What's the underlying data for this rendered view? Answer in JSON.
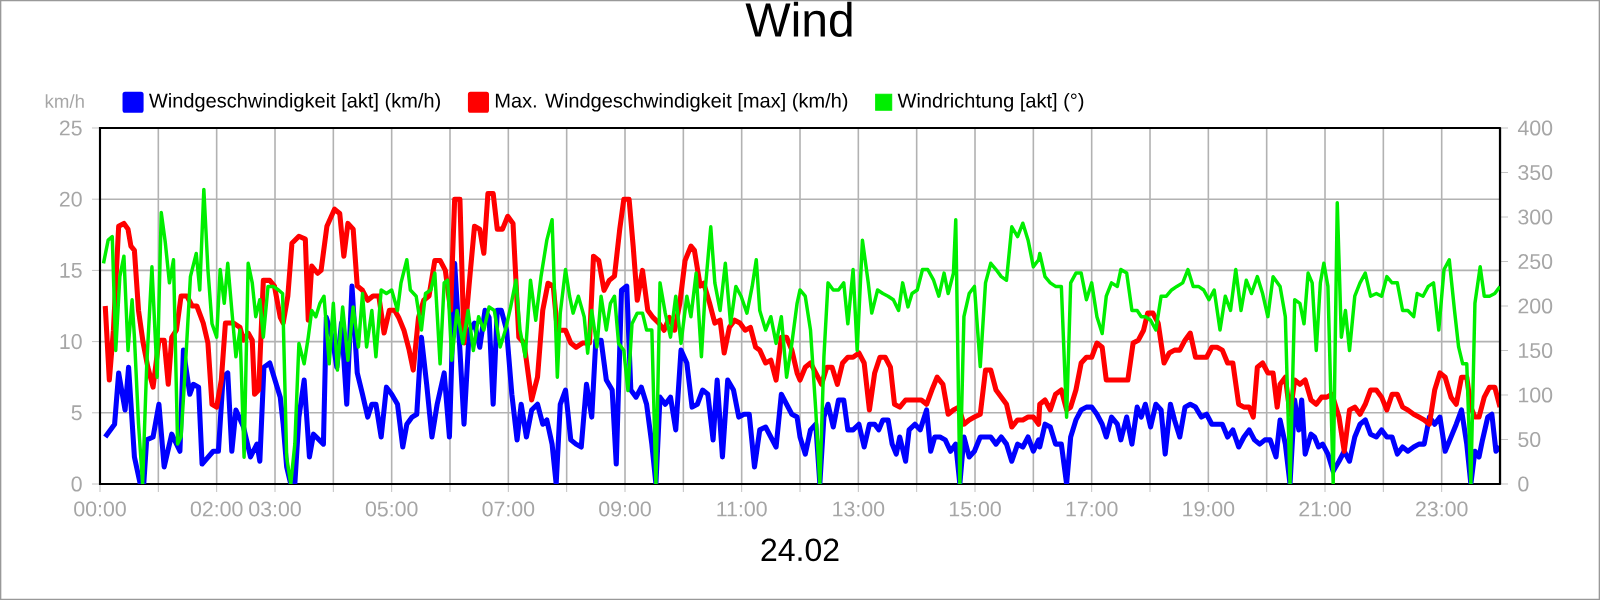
{
  "chart_data": {
    "type": "line",
    "title": "Wind",
    "xlabel": "24.02",
    "ylabel": "km/h",
    "xlim": [
      0,
      24
    ],
    "xticks": [
      {
        "value": 0,
        "label": "00:00"
      },
      {
        "value": 1,
        "label": null
      },
      {
        "value": 2,
        "label": "02:00"
      },
      {
        "value": 3,
        "label": "03:00"
      },
      {
        "value": 4,
        "label": null
      },
      {
        "value": 5,
        "label": "05:00"
      },
      {
        "value": 6,
        "label": null
      },
      {
        "value": 7,
        "label": "07:00"
      },
      {
        "value": 8,
        "label": null
      },
      {
        "value": 9,
        "label": "09:00"
      },
      {
        "value": 10,
        "label": null
      },
      {
        "value": 11,
        "label": "11:00"
      },
      {
        "value": 12,
        "label": null
      },
      {
        "value": 13,
        "label": "13:00"
      },
      {
        "value": 14,
        "label": null
      },
      {
        "value": 15,
        "label": "15:00"
      },
      {
        "value": 16,
        "label": null
      },
      {
        "value": 17,
        "label": "17:00"
      },
      {
        "value": 18,
        "label": null
      },
      {
        "value": 19,
        "label": "19:00"
      },
      {
        "value": 20,
        "label": null
      },
      {
        "value": 21,
        "label": "21:00"
      },
      {
        "value": 22,
        "label": null
      },
      {
        "value": 23,
        "label": "23:00"
      }
    ],
    "ylim": [
      0,
      25
    ],
    "yticks": [
      0,
      5,
      10,
      15,
      20,
      25
    ],
    "y2lim": [
      0,
      400
    ],
    "y2ticks": [
      0,
      50,
      100,
      150,
      200,
      250,
      300,
      350,
      400
    ],
    "grid": true,
    "legend": "top",
    "series": [
      {
        "name": "Windgeschwindigkeit [akt] (km/h)",
        "color": "#0000ff",
        "x": [
          0.09,
          0.25,
          0.32,
          0.43,
          0.49,
          0.59,
          0.69,
          0.75,
          0.8,
          0.91,
          1.01,
          1.1,
          1.23,
          1.37,
          1.43,
          1.54,
          1.6,
          1.69,
          1.75,
          1.94,
          2.03,
          2.11,
          2.19,
          2.26,
          2.33,
          2.46,
          2.58,
          2.69,
          2.74,
          2.81,
          2.91,
          3.09,
          3.14,
          3.2,
          3.27,
          3.34,
          3.41,
          3.5,
          3.59,
          3.66,
          3.83,
          3.88,
          3.98,
          4.06,
          4.14,
          4.23,
          4.32,
          4.41,
          4.5,
          4.59,
          4.66,
          4.73,
          4.82,
          4.91,
          5.0,
          5.1,
          5.19,
          5.26,
          5.35,
          5.43,
          5.51,
          5.6,
          5.69,
          5.78,
          5.9,
          5.99,
          6.08,
          6.17,
          6.24,
          6.33,
          6.42,
          6.51,
          6.6,
          6.67,
          6.74,
          6.81,
          6.88,
          6.97,
          7.06,
          7.15,
          7.22,
          7.31,
          7.4,
          7.5,
          7.59,
          7.66,
          7.75,
          7.82,
          7.89,
          7.98,
          8.07,
          8.16,
          8.25,
          8.34,
          8.43,
          8.5,
          8.59,
          8.68,
          8.78,
          8.85,
          8.94,
          9.03,
          9.1,
          9.19,
          9.28,
          9.37,
          9.46,
          9.53,
          9.6,
          9.69,
          9.78,
          9.87,
          9.96,
          10.06,
          10.15,
          10.24,
          10.33,
          10.42,
          10.51,
          10.58,
          10.67,
          10.76,
          10.86,
          10.95,
          11.04,
          11.13,
          11.22,
          11.31,
          11.41,
          11.5,
          11.59,
          11.68,
          11.77,
          11.86,
          11.95,
          12.0,
          12.09,
          12.18,
          12.27,
          12.34,
          12.41,
          12.48,
          12.57,
          12.66,
          12.75,
          12.82,
          12.91,
          13.01,
          13.1,
          13.19,
          13.28,
          13.35,
          13.42,
          13.51,
          13.58,
          13.65,
          13.71,
          13.81,
          13.87,
          13.97,
          14.06,
          14.17,
          14.24,
          14.31,
          14.4,
          14.49,
          14.58,
          14.67,
          14.74,
          14.81,
          14.9,
          14.99,
          15.09,
          15.18,
          15.27,
          15.36,
          15.45,
          15.54,
          15.63,
          15.73,
          15.82,
          15.91,
          16.0,
          16.09,
          16.11,
          16.2,
          16.29,
          16.38,
          16.48,
          16.57,
          16.64,
          16.73,
          16.82,
          16.91,
          17.0,
          17.09,
          17.18,
          17.25,
          17.34,
          17.44,
          17.5,
          17.6,
          17.69,
          17.78,
          17.85,
          17.92,
          18.01,
          18.1,
          18.19,
          18.26,
          18.35,
          18.42,
          18.51,
          18.6,
          18.69,
          18.78,
          18.88,
          18.97,
          19.06,
          19.15,
          19.24,
          19.33,
          19.42,
          19.52,
          19.61,
          19.7,
          19.79,
          19.88,
          19.97,
          20.06,
          20.16,
          20.23,
          20.32,
          20.4,
          20.48,
          20.55,
          20.6,
          20.66,
          20.76,
          20.82,
          20.89,
          20.96,
          21.05,
          21.14,
          21.24,
          21.33,
          21.42,
          21.51,
          21.6,
          21.69,
          21.78,
          21.88,
          21.97,
          22.06,
          22.15,
          22.24,
          22.33,
          22.42,
          22.52,
          22.61,
          22.7,
          22.79,
          22.88,
          22.97,
          23.06,
          23.16,
          23.25,
          23.34,
          23.43,
          23.5,
          23.57,
          23.64,
          23.7,
          23.79,
          23.86,
          23.93,
          24.0
        ],
        "values": [
          3.3,
          4.2,
          7.8,
          5.2,
          8.2,
          1.9,
          0,
          0,
          3.1,
          3.3,
          5.6,
          1.2,
          3.5,
          2.3,
          9.4,
          6.3,
          7.0,
          6.8,
          1.4,
          2.3,
          2.3,
          7.5,
          7.8,
          2.3,
          5.2,
          4.0,
          1.9,
          2.8,
          1.6,
          8.2,
          8.5,
          6.1,
          4.2,
          1.2,
          0,
          0,
          4.7,
          7.3,
          1.9,
          3.5,
          2.8,
          11.7,
          10.3,
          8.2,
          11.3,
          5.6,
          13.9,
          7.8,
          6.3,
          4.7,
          5.6,
          5.6,
          3.3,
          6.8,
          6.3,
          5.6,
          2.6,
          4.2,
          4.7,
          4.9,
          10.3,
          7.0,
          3.3,
          5.6,
          7.8,
          3.3,
          15.5,
          9.4,
          4.2,
          10.8,
          11.3,
          9.6,
          12.2,
          11.7,
          5.6,
          12.2,
          12.2,
          10.8,
          6.3,
          3.1,
          5.6,
          3.3,
          5.2,
          5.6,
          4.2,
          4.5,
          2.8,
          0,
          5.6,
          6.6,
          3.1,
          2.8,
          2.6,
          7.0,
          4.7,
          10.1,
          10.1,
          7.3,
          6.6,
          1.4,
          13.6,
          13.9,
          6.6,
          6.1,
          6.8,
          5.6,
          2.8,
          0,
          6.1,
          5.6,
          6.1,
          3.8,
          9.4,
          8.5,
          5.4,
          5.6,
          6.6,
          6.3,
          3.1,
          7.3,
          1.9,
          7.3,
          6.6,
          4.7,
          4.9,
          4.9,
          1.2,
          3.8,
          4.0,
          3.3,
          2.6,
          6.3,
          5.6,
          4.9,
          4.7,
          3.3,
          2.1,
          3.8,
          4.2,
          0,
          4.7,
          5.6,
          4.0,
          5.9,
          5.9,
          3.8,
          3.8,
          4.2,
          2.6,
          4.2,
          4.2,
          3.8,
          4.5,
          4.5,
          2.8,
          2.1,
          3.3,
          1.6,
          3.8,
          4.2,
          3.8,
          5.2,
          2.3,
          3.3,
          3.3,
          3.1,
          2.3,
          2.8,
          0,
          3.3,
          1.9,
          2.3,
          3.3,
          3.3,
          3.3,
          2.8,
          3.3,
          2.8,
          1.6,
          2.8,
          2.6,
          3.3,
          2.3,
          3.1,
          2.6,
          4.2,
          4.0,
          2.8,
          2.8,
          0,
          3.3,
          4.5,
          5.2,
          5.4,
          5.4,
          4.9,
          4.2,
          3.3,
          4.7,
          4.2,
          3.1,
          4.7,
          2.8,
          5.4,
          4.7,
          5.6,
          4.0,
          5.6,
          5.2,
          2.1,
          5.6,
          4.5,
          3.3,
          5.4,
          5.6,
          5.4,
          4.7,
          4.9,
          4.2,
          4.2,
          4.2,
          3.3,
          3.8,
          2.6,
          3.3,
          3.8,
          3.1,
          2.8,
          3.1,
          3.1,
          1.9,
          4.5,
          2.8,
          0,
          5.9,
          3.8,
          5.9,
          2.1,
          3.5,
          3.3,
          2.6,
          2.8,
          2.1,
          0.9,
          1.6,
          2.3,
          1.6,
          3.3,
          4.2,
          4.5,
          3.5,
          3.3,
          3.8,
          3.3,
          3.3,
          2.1,
          2.6,
          2.3,
          2.6,
          2.8,
          2.8,
          4.7,
          4.2,
          4.7,
          2.3,
          3.3,
          4.2,
          5.2,
          2.8,
          0,
          2.3,
          1.9,
          3.1,
          4.7,
          4.9,
          2.3,
          2.6
        ]
      },
      {
        "name": "Max. Windgeschwindigkeit [max] (km/h)",
        "color": "#ff0000",
        "x": [
          0.09,
          0.16,
          0.23,
          0.32,
          0.41,
          0.48,
          0.53,
          0.59,
          0.66,
          0.74,
          0.82,
          0.91,
          1.01,
          1.1,
          1.17,
          1.23,
          1.31,
          1.39,
          1.49,
          1.58,
          1.66,
          1.77,
          1.85,
          1.92,
          2.0,
          2.08,
          2.15,
          2.29,
          2.4,
          2.46,
          2.54,
          2.61,
          2.65,
          2.72,
          2.8,
          2.91,
          2.99,
          3.09,
          3.14,
          3.22,
          3.29,
          3.41,
          3.52,
          3.57,
          3.63,
          3.73,
          3.79,
          3.89,
          4.02,
          4.11,
          4.18,
          4.25,
          4.34,
          4.41,
          4.5,
          4.59,
          4.68,
          4.78,
          4.87,
          4.96,
          5.05,
          5.12,
          5.21,
          5.3,
          5.37,
          5.46,
          5.55,
          5.64,
          5.74,
          5.83,
          5.92,
          6.01,
          6.08,
          6.17,
          6.24,
          6.33,
          6.42,
          6.51,
          6.58,
          6.65,
          6.74,
          6.81,
          6.9,
          6.99,
          7.08,
          7.18,
          7.27,
          7.4,
          7.5,
          7.59,
          7.68,
          7.77,
          7.84,
          7.89,
          7.98,
          8.07,
          8.16,
          8.27,
          8.39,
          8.46,
          8.55,
          8.64,
          8.73,
          8.82,
          8.91,
          8.98,
          9.07,
          9.14,
          9.21,
          9.3,
          9.39,
          9.48,
          9.58,
          9.67,
          9.76,
          9.85,
          9.94,
          10.03,
          10.13,
          10.19,
          10.29,
          10.35,
          10.45,
          10.54,
          10.63,
          10.7,
          10.79,
          10.88,
          10.97,
          11.06,
          11.15,
          11.24,
          11.31,
          11.41,
          11.5,
          11.59,
          11.68,
          11.77,
          11.86,
          11.95,
          12.0,
          12.09,
          12.18,
          12.27,
          12.37,
          12.46,
          12.55,
          12.64,
          12.73,
          12.82,
          12.91,
          13.01,
          13.1,
          13.19,
          13.28,
          13.37,
          13.46,
          13.55,
          13.62,
          13.71,
          13.81,
          13.9,
          13.99,
          14.08,
          14.17,
          14.26,
          14.35,
          14.45,
          14.54,
          14.63,
          14.72,
          14.81,
          14.9,
          14.99,
          15.09,
          15.18,
          15.27,
          15.36,
          15.45,
          15.54,
          15.63,
          15.73,
          15.82,
          15.91,
          16.0,
          16.09,
          16.11,
          16.2,
          16.29,
          16.38,
          16.48,
          16.57,
          16.64,
          16.73,
          16.82,
          16.91,
          17.0,
          17.09,
          17.18,
          17.25,
          17.34,
          17.44,
          17.53,
          17.62,
          17.71,
          17.8,
          17.89,
          17.96,
          18.05,
          18.14,
          18.24,
          18.33,
          18.42,
          18.51,
          18.6,
          18.69,
          18.78,
          18.88,
          18.97,
          19.06,
          19.15,
          19.24,
          19.33,
          19.42,
          19.52,
          19.61,
          19.7,
          19.77,
          19.84,
          19.93,
          20.02,
          20.11,
          20.18,
          20.23,
          20.32,
          20.4,
          20.48,
          20.57,
          20.66,
          20.76,
          20.85,
          20.94,
          21.03,
          21.12,
          21.24,
          21.33,
          21.42,
          21.51,
          21.6,
          21.69,
          21.78,
          21.88,
          21.97,
          22.06,
          22.15,
          22.24,
          22.33,
          22.42,
          22.52,
          22.61,
          22.7,
          22.79,
          22.88,
          22.97,
          23.06,
          23.16,
          23.25,
          23.34,
          23.43,
          23.5,
          23.57,
          23.64,
          23.73,
          23.82,
          23.91,
          24.0
        ],
        "values": [
          12.5,
          7.3,
          10.8,
          18.1,
          18.3,
          17.9,
          16.7,
          16.4,
          12.2,
          9.9,
          8.2,
          6.8,
          10.1,
          10.1,
          7.0,
          10.3,
          10.8,
          13.2,
          13.2,
          12.5,
          12.5,
          11.3,
          9.9,
          5.6,
          5.4,
          7.3,
          11.3,
          11.3,
          11.0,
          10.1,
          10.6,
          10.1,
          6.3,
          6.6,
          14.3,
          14.3,
          13.9,
          11.7,
          11.3,
          13.2,
          16.9,
          17.4,
          17.2,
          11.5,
          15.3,
          14.8,
          15.0,
          18.1,
          19.3,
          19.0,
          16.0,
          18.3,
          17.9,
          13.9,
          13.6,
          12.9,
          13.2,
          13.2,
          10.6,
          12.2,
          12.2,
          11.7,
          10.8,
          9.4,
          8.0,
          11.7,
          12.9,
          13.2,
          15.7,
          15.7,
          15.0,
          12.2,
          20.0,
          20.0,
          9.9,
          14.1,
          18.1,
          17.9,
          16.2,
          20.4,
          20.4,
          17.9,
          17.9,
          18.8,
          18.3,
          10.3,
          9.9,
          5.9,
          7.5,
          12.2,
          14.1,
          13.9,
          10.8,
          10.8,
          10.8,
          9.9,
          9.6,
          9.9,
          9.9,
          16.0,
          15.7,
          13.6,
          14.3,
          14.6,
          17.9,
          20.0,
          20.0,
          16.7,
          12.9,
          15.0,
          12.2,
          11.7,
          11.3,
          10.8,
          11.7,
          10.8,
          12.7,
          15.7,
          16.7,
          16.4,
          13.9,
          14.1,
          12.7,
          11.3,
          11.5,
          9.2,
          11.0,
          11.5,
          11.3,
          10.8,
          11.0,
          9.6,
          9.4,
          8.5,
          8.7,
          7.3,
          10.3,
          10.3,
          9.4,
          7.8,
          7.3,
          8.2,
          8.5,
          7.8,
          7.0,
          8.2,
          8.2,
          7.0,
          8.5,
          8.9,
          8.9,
          9.2,
          8.5,
          5.2,
          7.8,
          8.9,
          8.9,
          8.2,
          5.6,
          5.4,
          5.9,
          5.9,
          5.9,
          5.9,
          5.6,
          6.6,
          7.5,
          7.0,
          4.9,
          5.2,
          5.4,
          4.2,
          4.5,
          4.7,
          4.9,
          8.0,
          8.0,
          6.6,
          6.1,
          5.6,
          4.0,
          4.5,
          4.5,
          4.7,
          4.7,
          4.2,
          5.6,
          5.9,
          5.2,
          6.3,
          6.6,
          5.2,
          5.4,
          6.6,
          8.5,
          8.9,
          8.9,
          9.9,
          9.6,
          7.3,
          7.3,
          7.3,
          7.3,
          7.3,
          9.9,
          10.1,
          10.8,
          12.0,
          12.0,
          11.3,
          8.5,
          9.2,
          9.4,
          9.4,
          10.1,
          10.6,
          8.9,
          8.9,
          8.9,
          9.6,
          9.6,
          9.4,
          8.5,
          8.5,
          5.6,
          5.4,
          5.4,
          4.7,
          8.2,
          8.5,
          7.8,
          7.8,
          5.4,
          7.0,
          7.5,
          4.9,
          7.3,
          7.0,
          7.3,
          5.9,
          5.6,
          6.1,
          6.1,
          6.3,
          4.7,
          2.3,
          5.2,
          5.4,
          4.9,
          5.6,
          6.6,
          6.6,
          6.1,
          5.2,
          6.3,
          6.3,
          5.4,
          5.2,
          4.9,
          4.7,
          4.5,
          4.2,
          6.6,
          7.8,
          7.5,
          6.1,
          5.6,
          7.5,
          7.5,
          5.4,
          4.7,
          4.7,
          6.1,
          6.8,
          6.8,
          5.4
        ]
      },
      {
        "name": "Windrichtung [akt] (°)",
        "color": "#00ee00",
        "axis": "y2",
        "x": [
          0.06,
          0.14,
          0.21,
          0.27,
          0.34,
          0.41,
          0.48,
          0.55,
          0.59,
          0.66,
          0.73,
          0.8,
          0.89,
          0.98,
          1.05,
          1.12,
          1.19,
          1.26,
          1.33,
          1.39,
          1.46,
          1.55,
          1.65,
          1.71,
          1.78,
          1.85,
          1.92,
          2.0,
          2.06,
          2.13,
          2.19,
          2.26,
          2.33,
          2.4,
          2.47,
          2.54,
          2.61,
          2.67,
          2.74,
          2.8,
          2.88,
          2.97,
          3.06,
          3.13,
          3.2,
          3.27,
          3.34,
          3.41,
          3.5,
          3.57,
          3.63,
          3.7,
          3.77,
          3.84,
          3.93,
          4.0,
          4.07,
          4.16,
          4.25,
          4.34,
          4.43,
          4.5,
          4.57,
          4.66,
          4.73,
          4.82,
          4.91,
          5.0,
          5.1,
          5.16,
          5.26,
          5.32,
          5.42,
          5.51,
          5.58,
          5.67,
          5.74,
          5.83,
          5.9,
          5.96,
          6.03,
          6.12,
          6.22,
          6.31,
          6.4,
          6.49,
          6.58,
          6.67,
          6.76,
          6.86,
          6.95,
          7.04,
          7.13,
          7.2,
          7.29,
          7.38,
          7.47,
          7.56,
          7.66,
          7.75,
          7.84,
          7.89,
          7.98,
          8.05,
          8.11,
          8.2,
          8.3,
          8.36,
          8.43,
          8.52,
          8.59,
          8.68,
          8.75,
          8.82,
          8.89,
          8.98,
          9.05,
          9.12,
          9.21,
          9.3,
          9.37,
          9.46,
          9.53,
          9.6,
          9.69,
          9.78,
          9.87,
          9.96,
          10.06,
          10.13,
          10.22,
          10.31,
          10.38,
          10.47,
          10.54,
          10.63,
          10.72,
          10.81,
          10.9,
          10.99,
          11.09,
          11.18,
          11.25,
          11.31,
          11.41,
          11.5,
          11.59,
          11.68,
          11.77,
          11.86,
          11.95,
          12.0,
          12.09,
          12.18,
          12.27,
          12.34,
          12.41,
          12.48,
          12.57,
          12.66,
          12.75,
          12.82,
          12.91,
          12.98,
          13.07,
          13.17,
          13.23,
          13.33,
          13.42,
          13.51,
          13.6,
          13.69,
          13.76,
          13.85,
          13.92,
          14.01,
          14.1,
          14.19,
          14.29,
          14.38,
          14.47,
          14.54,
          14.63,
          14.67,
          14.74,
          14.81,
          14.9,
          14.99,
          15.09,
          15.18,
          15.27,
          15.36,
          15.45,
          15.54,
          15.63,
          15.73,
          15.82,
          15.91,
          16.0,
          16.09,
          16.11,
          16.2,
          16.29,
          16.38,
          16.48,
          16.57,
          16.64,
          16.73,
          16.82,
          16.91,
          17.0,
          17.09,
          17.18,
          17.25,
          17.34,
          17.44,
          17.5,
          17.6,
          17.69,
          17.78,
          17.85,
          17.92,
          18.01,
          18.1,
          18.19,
          18.28,
          18.37,
          18.46,
          18.56,
          18.65,
          18.74,
          18.83,
          18.92,
          19.01,
          19.1,
          19.2,
          19.29,
          19.38,
          19.47,
          19.56,
          19.65,
          19.74,
          19.84,
          19.93,
          20.02,
          20.11,
          20.23,
          20.32,
          20.4,
          20.48,
          20.57,
          20.64,
          20.71,
          20.78,
          20.85,
          20.92,
          20.98,
          21.05,
          21.14,
          21.21,
          21.28,
          21.35,
          21.42,
          21.51,
          21.6,
          21.69,
          21.78,
          21.88,
          21.97,
          22.06,
          22.15,
          22.24,
          22.33,
          22.42,
          22.52,
          22.58,
          22.68,
          22.77,
          22.86,
          22.95,
          23.04,
          23.13,
          23.22,
          23.29,
          23.36,
          23.43,
          23.5,
          23.57,
          23.66,
          23.73,
          23.82,
          23.91,
          24.0
        ],
        "values": [
          248,
          274,
          278,
          150,
          233,
          256,
          150,
          207,
          165,
          68,
          0,
          132,
          244,
          120,
          305,
          271,
          226,
          252,
          45,
          53,
          128,
          233,
          259,
          218,
          331,
          241,
          180,
          165,
          241,
          203,
          248,
          195,
          143,
          173,
          30,
          248,
          226,
          188,
          207,
          165,
          222,
          222,
          218,
          214,
          30,
          0,
          45,
          158,
          135,
          165,
          195,
          188,
          203,
          211,
          135,
          203,
          128,
          199,
          139,
          199,
          154,
          214,
          154,
          195,
          143,
          218,
          214,
          218,
          195,
          226,
          252,
          218,
          211,
          173,
          214,
          218,
          237,
          135,
          226,
          229,
          139,
          195,
          158,
          195,
          150,
          188,
          173,
          199,
          195,
          154,
          173,
          199,
          229,
          173,
          143,
          229,
          184,
          233,
          274,
          297,
          120,
          192,
          241,
          211,
          192,
          211,
          188,
          147,
          195,
          154,
          211,
          173,
          203,
          211,
          158,
          150,
          105,
          180,
          192,
          192,
          173,
          173,
          0,
          226,
          192,
          165,
          211,
          158,
          211,
          188,
          237,
          143,
          222,
          289,
          226,
          195,
          248,
          180,
          222,
          211,
          192,
          222,
          252,
          195,
          173,
          188,
          158,
          188,
          120,
          158,
          203,
          218,
          211,
          173,
          83,
          0,
          143,
          226,
          218,
          218,
          226,
          180,
          241,
          150,
          274,
          226,
          192,
          218,
          214,
          211,
          207,
          195,
          226,
          199,
          214,
          218,
          241,
          241,
          229,
          211,
          237,
          214,
          237,
          297,
          0,
          188,
          214,
          222,
          132,
          226,
          248,
          241,
          233,
          229,
          289,
          278,
          293,
          274,
          244,
          252,
          259,
          233,
          226,
          222,
          222,
          75,
          226,
          237,
          237,
          207,
          226,
          188,
          169,
          211,
          226,
          222,
          241,
          237,
          195,
          195,
          188,
          188,
          184,
          173,
          211,
          211,
          218,
          222,
          226,
          241,
          222,
          222,
          218,
          207,
          218,
          173,
          211,
          195,
          241,
          195,
          229,
          214,
          233,
          214,
          188,
          233,
          222,
          188,
          0,
          207,
          203,
          180,
          237,
          226,
          150,
          226,
          248,
          222,
          0,
          316,
          165,
          195,
          150,
          211,
          226,
          237,
          211,
          214,
          211,
          233,
          226,
          226,
          195,
          195,
          188,
          214,
          211,
          222,
          226,
          173,
          241,
          252,
          195,
          154,
          135,
          135,
          0,
          203,
          244,
          211,
          211,
          214,
          222
        ]
      }
    ]
  }
}
